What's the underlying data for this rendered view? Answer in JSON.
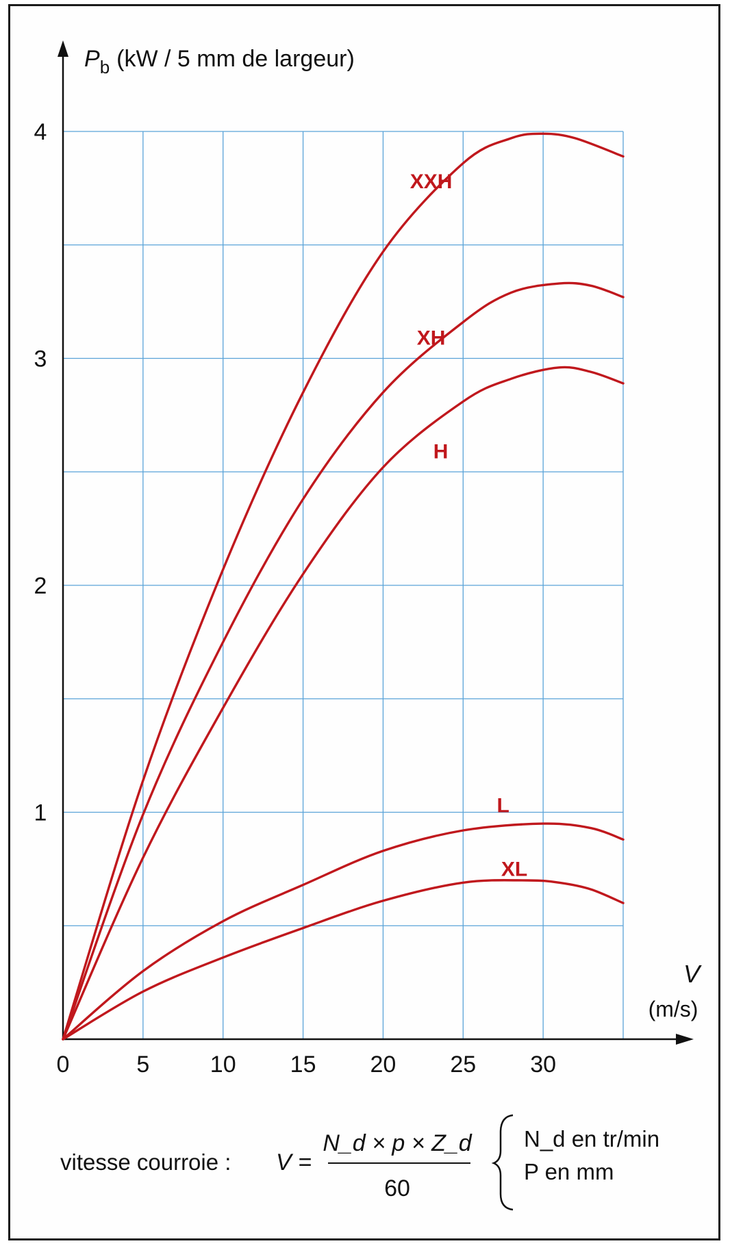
{
  "chart_data": {
    "type": "line",
    "title": "",
    "ylabel": "P_b (kW / 5 mm de largeur)",
    "ylabel_main": "P",
    "ylabel_sub": "b",
    "ylabel_unit": "(kW / 5 mm de largeur)",
    "xlabel": "V (m/s)",
    "xlabel_main": "V",
    "xlabel_unit": "(m/s)",
    "xlim": [
      0,
      35
    ],
    "ylim": [
      0,
      4
    ],
    "x_ticks": [
      0,
      5,
      10,
      15,
      20,
      25,
      30
    ],
    "y_ticks": [
      1,
      2,
      3,
      4
    ],
    "grid": true,
    "grid_color": "#5aa3d8",
    "curve_color": "#c0181d",
    "series": [
      {
        "name": "XXH",
        "x": [
          0,
          5,
          10,
          15,
          20,
          25,
          28,
          30,
          32,
          35
        ],
        "y": [
          0,
          1.14,
          2.07,
          2.85,
          3.47,
          3.86,
          3.97,
          3.99,
          3.97,
          3.89
        ]
      },
      {
        "name": "XH",
        "x": [
          0,
          5,
          10,
          15,
          20,
          25,
          28,
          31,
          33,
          35
        ],
        "y": [
          0,
          0.99,
          1.75,
          2.38,
          2.85,
          3.16,
          3.29,
          3.33,
          3.32,
          3.27
        ]
      },
      {
        "name": "H",
        "x": [
          0,
          5,
          10,
          15,
          20,
          25,
          28,
          31,
          33,
          35
        ],
        "y": [
          0,
          0.8,
          1.46,
          2.05,
          2.52,
          2.81,
          2.91,
          2.96,
          2.94,
          2.89
        ]
      },
      {
        "name": "L",
        "x": [
          0,
          5,
          10,
          15,
          20,
          25,
          30,
          33,
          35
        ],
        "y": [
          0,
          0.3,
          0.52,
          0.68,
          0.83,
          0.92,
          0.95,
          0.93,
          0.88
        ]
      },
      {
        "name": "XL",
        "x": [
          0,
          5,
          10,
          15,
          20,
          25,
          29,
          31,
          33,
          35
        ],
        "y": [
          0,
          0.21,
          0.36,
          0.49,
          0.61,
          0.69,
          0.7,
          0.69,
          0.66,
          0.6
        ]
      }
    ]
  },
  "formula": {
    "prefix": "vitesse courroie :",
    "lhs": "V =",
    "numerator": "N_d × p × Z_d",
    "denominator": "60",
    "legend": [
      "N_d en tr/min",
      "P en mm"
    ]
  }
}
